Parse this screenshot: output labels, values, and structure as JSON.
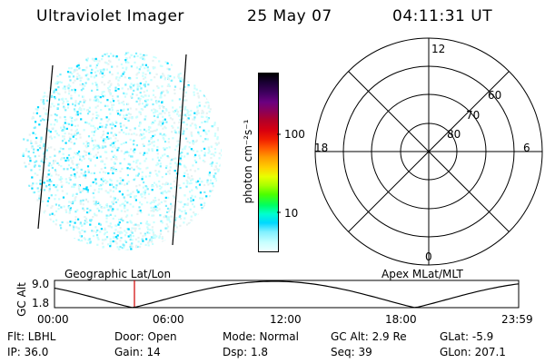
{
  "header": {
    "instrument": "Ultraviolet Imager",
    "date": "25 May 07",
    "time": "04:11:31 UT"
  },
  "colorbar": {
    "unit_label": "photon cm⁻²s⁻¹",
    "ticks": [
      "100",
      "10"
    ],
    "colors": [
      "#000000",
      "#1a0033",
      "#400060",
      "#6a0080",
      "#8a005a",
      "#b0002a",
      "#d8000f",
      "#f01e00",
      "#ff5a00",
      "#ff9a00",
      "#ffd000",
      "#e8ff00",
      "#a8ff00",
      "#4cff00",
      "#00ff60",
      "#00ffd0",
      "#00d8ff",
      "#80f0ff",
      "#c8ffff",
      "#eeffff"
    ]
  },
  "polar": {
    "mlt_labels": {
      "top": "12",
      "left": "18",
      "right": "6",
      "bottom": "0"
    },
    "lat_labels": [
      "60",
      "70",
      "80"
    ]
  },
  "track": {
    "ylabel": "GC Alt",
    "ytick_max": "9.0",
    "ytick_min": "1.8",
    "left_title": "Geographic Lat/Lon",
    "right_title": "Apex MLat/MLT",
    "time_ticks": [
      "00:00",
      "06:00",
      "12:00",
      "18:00",
      "23:59"
    ]
  },
  "status": {
    "flt": "Flt: LBHL",
    "door": "Door: Open",
    "mode": "Mode: Normal",
    "gc_alt": "GC Alt: 2.9 Re",
    "glat": "GLat:  -5.9",
    "ip": "IP: 36.0",
    "gain": "Gain: 14",
    "dsp": "Dsp:    1.8",
    "seq": "Seq: 39",
    "glon": "GLon: 207.1"
  }
}
